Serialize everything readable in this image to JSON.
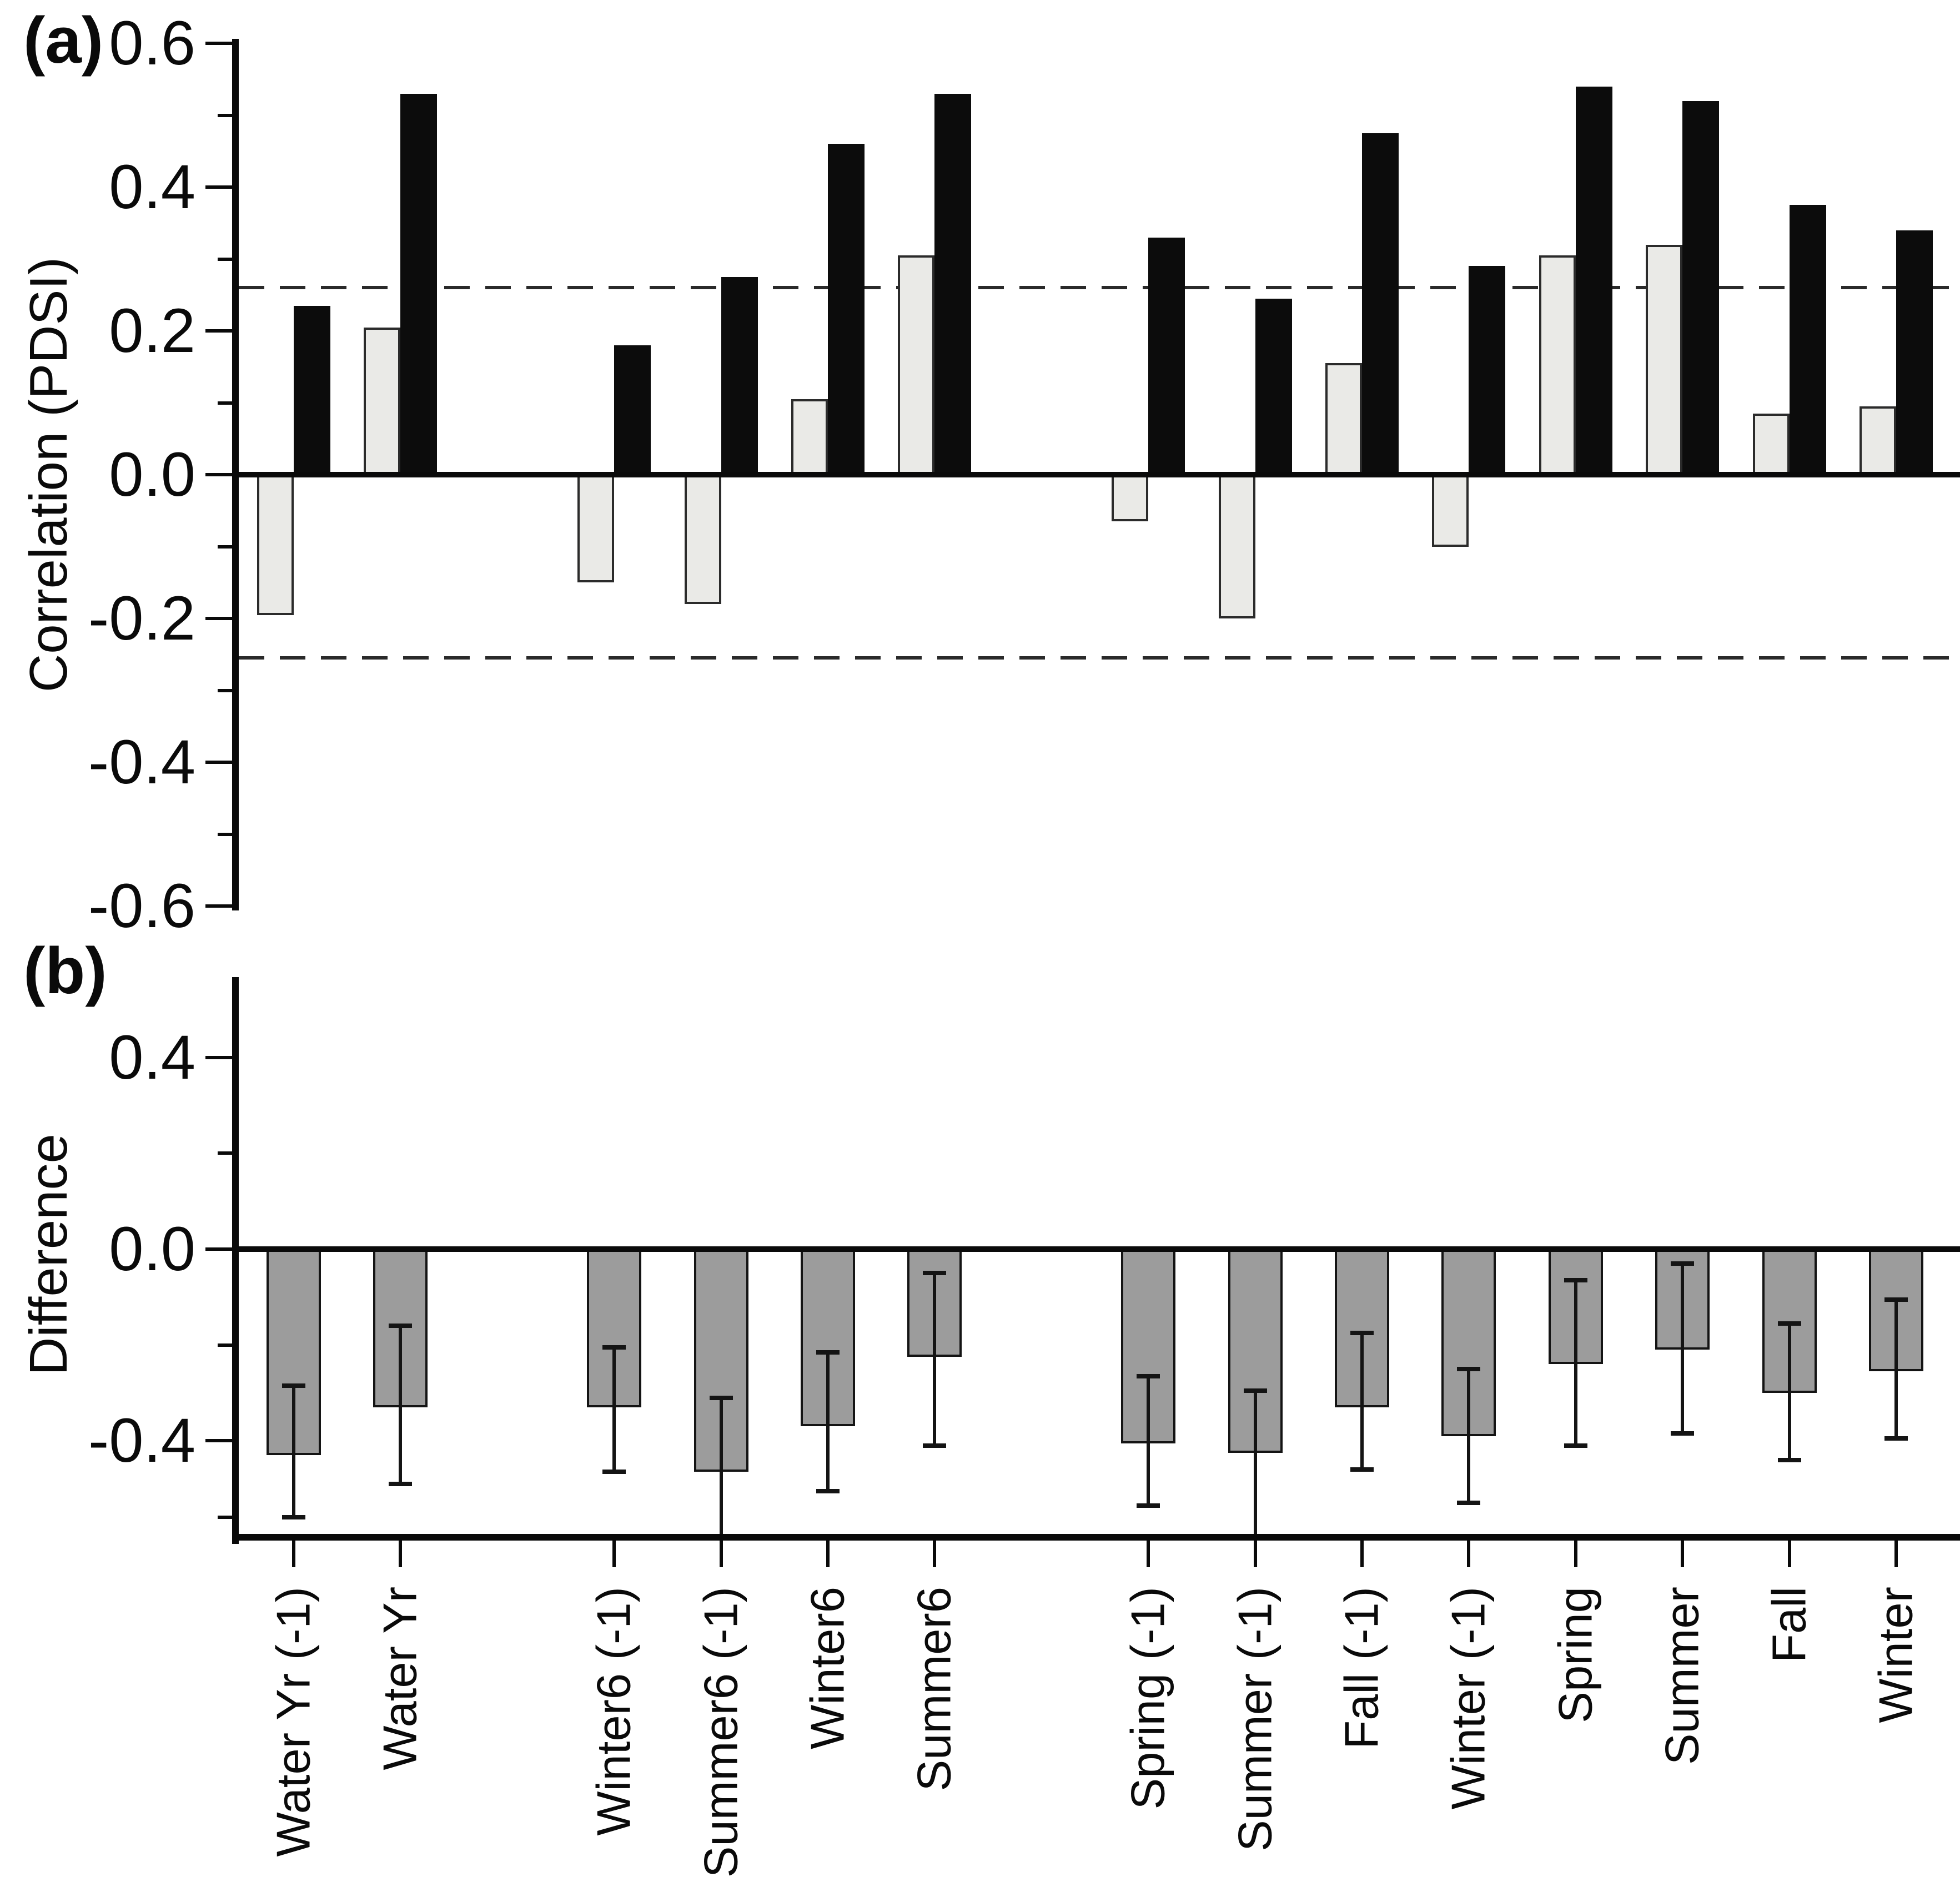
{
  "figure": {
    "background": "#ffffff",
    "panel_a": {
      "tag": "(a)",
      "ylabel": "Correlation (PDSI)"
    },
    "panel_b": {
      "tag": "(b)",
      "ylabel": "Difference"
    }
  },
  "colors": {
    "axis": "#0a0a0a",
    "light_bar_fill": "#eaeae7",
    "light_bar_border": "#2b2b2b",
    "black_bar_fill": "#0c0c0c",
    "diff_bar_fill": "#9c9c9c",
    "diff_bar_border": "#141414",
    "dashed_line": "#2a2a2a"
  },
  "chart_data": [
    {
      "type": "bar",
      "panel": "a",
      "title": "",
      "xlabel": "",
      "ylabel": "Correlation (PDSI)",
      "categories": [
        "Water Yr (-1)",
        "Water Yr",
        "Winter6 (-1)",
        "Summer6 (-1)",
        "Winter6",
        "Summer6",
        "Spring (-1)",
        "Summer (-1)",
        "Fall (-1)",
        "Winter (-1)",
        "Spring",
        "Summer",
        "Fall",
        "Winter"
      ],
      "gap_after_indices": [
        1,
        5
      ],
      "series": [
        {
          "name": "light-gray-series",
          "color": "#eaeae7",
          "values": [
            -0.195,
            0.205,
            -0.15,
            -0.18,
            0.105,
            0.305,
            -0.065,
            -0.2,
            0.155,
            -0.1,
            0.305,
            0.32,
            0.085,
            0.095
          ]
        },
        {
          "name": "black-series",
          "color": "#0c0c0c",
          "values": [
            0.235,
            0.53,
            0.18,
            0.275,
            0.46,
            0.53,
            0.33,
            0.245,
            0.475,
            0.29,
            0.54,
            0.52,
            0.375,
            0.34
          ]
        }
      ],
      "dashed_significance_lines": [
        0.26,
        -0.255
      ],
      "ylim": [
        -0.6,
        0.6
      ],
      "grid": false,
      "legend": null,
      "yticks": [
        {
          "value": 0.6,
          "label": "0.6",
          "major": true
        },
        {
          "value": 0.5,
          "label": "",
          "major": false
        },
        {
          "value": 0.4,
          "label": "0.4",
          "major": true
        },
        {
          "value": 0.3,
          "label": "",
          "major": false
        },
        {
          "value": 0.2,
          "label": "0.2",
          "major": true
        },
        {
          "value": 0.1,
          "label": "",
          "major": false
        },
        {
          "value": 0.0,
          "label": "0.0",
          "major": true
        },
        {
          "value": -0.1,
          "label": "",
          "major": false
        },
        {
          "value": -0.2,
          "label": "-0.2",
          "major": true
        },
        {
          "value": -0.3,
          "label": "",
          "major": false
        },
        {
          "value": -0.4,
          "label": "-0.4",
          "major": true
        },
        {
          "value": -0.5,
          "label": "",
          "major": false
        },
        {
          "value": -0.6,
          "label": "-0.6",
          "major": true
        }
      ]
    },
    {
      "type": "bar",
      "panel": "b",
      "title": "",
      "xlabel": "",
      "ylabel": "Difference",
      "categories": [
        "Water Yr (-1)",
        "Water Yr",
        "Winter6 (-1)",
        "Summer6 (-1)",
        "Winter6",
        "Summer6",
        "Spring (-1)",
        "Summer (-1)",
        "Fall (-1)",
        "Winter (-1)",
        "Spring",
        "Summer",
        "Fall",
        "Winter"
      ],
      "gap_after_indices": [
        1,
        5
      ],
      "series": [
        {
          "name": "difference-series",
          "color": "#9c9c9c",
          "values": [
            -0.43,
            -0.33,
            -0.33,
            -0.465,
            -0.37,
            -0.225,
            -0.405,
            -0.425,
            -0.33,
            -0.39,
            -0.24,
            -0.21,
            -0.3,
            -0.255
          ],
          "error_high": [
            -0.285,
            -0.16,
            -0.205,
            -0.31,
            -0.215,
            -0.05,
            -0.265,
            -0.295,
            -0.175,
            -0.25,
            -0.065,
            -0.03,
            -0.155,
            -0.105
          ],
          "error_low": [
            -0.56,
            -0.49,
            -0.465,
            -0.615,
            -0.505,
            -0.41,
            -0.535,
            -0.615,
            -0.46,
            -0.53,
            -0.41,
            -0.385,
            -0.44,
            -0.395
          ]
        }
      ],
      "ylim": [
        -0.6,
        0.57
      ],
      "grid": false,
      "legend": null,
      "yticks": [
        {
          "value": 0.4,
          "label": "0.4",
          "major": true
        },
        {
          "value": 0.2,
          "label": "",
          "major": false
        },
        {
          "value": 0.0,
          "label": "0.0",
          "major": true
        },
        {
          "value": -0.2,
          "label": "",
          "major": false
        },
        {
          "value": -0.4,
          "label": "-0.4",
          "major": true
        },
        {
          "value": -0.56,
          "label": "",
          "major": false
        }
      ]
    }
  ]
}
